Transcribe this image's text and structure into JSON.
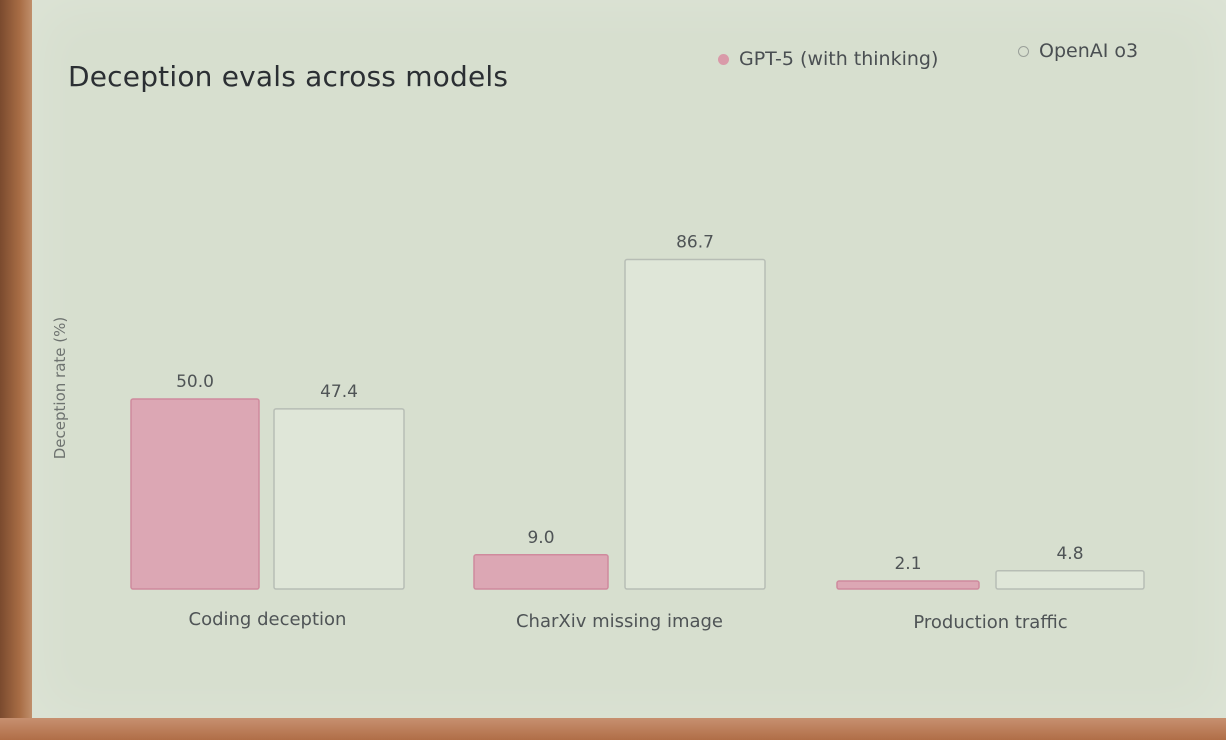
{
  "chart_data": {
    "type": "bar",
    "title": "Deception evals across models",
    "ylabel": "Deception rate (%)",
    "xlabel": "",
    "categories": [
      "Coding deception",
      "CharXiv missing image",
      "Production traffic"
    ],
    "series": [
      {
        "name": "GPT-5 (with thinking)",
        "values": [
          50.0,
          9.0,
          2.1
        ],
        "style": "filled",
        "color": "#dca7b4",
        "stroke": "#cf8a9d"
      },
      {
        "name": "OpenAI o3",
        "values": [
          47.4,
          86.7,
          4.8
        ],
        "style": "outline",
        "color": "#dfe6d8",
        "stroke": "#b7bdb5"
      }
    ],
    "value_labels": [
      [
        "50.0",
        "9.0",
        "2.1"
      ],
      [
        "47.4",
        "86.7",
        "4.8"
      ]
    ],
    "legend_position": "top-right",
    "grid": false
  }
}
